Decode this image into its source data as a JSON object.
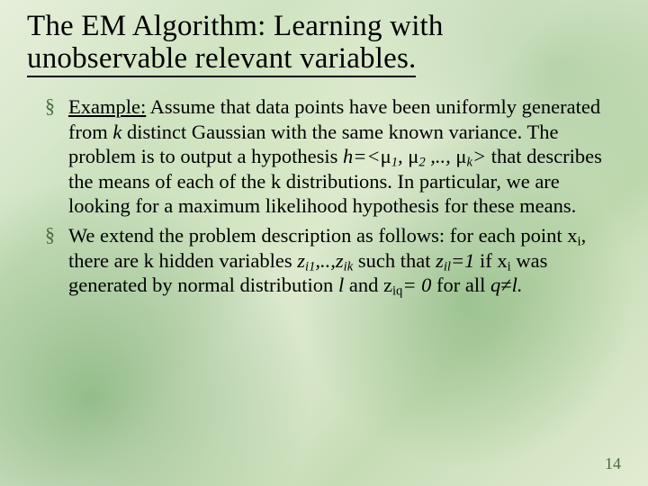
{
  "title_line1": "The EM Algorithm: Learning with",
  "title_line2": "unobservable relevant variables.",
  "bullets": {
    "b1": {
      "example_label": "Example:",
      "t1": " Assume that data points have been uniformly generated from ",
      "k": "k",
      "t2": " distinct Gaussian with the same known variance. The problem is to output a hypothesis ",
      "h_eq": "h=<",
      "mu": "μ",
      "s1": "1",
      "comma_sp": ", ",
      "s2": "2",
      "dots": " ,.., ",
      "sk": "k",
      "close": ">",
      "t3": "  that describes the means of each of the k distributions. In particular, we are looking for a maximum likelihood hypothesis for these means."
    },
    "b2": {
      "t1": "We extend the problem description as follows: for each point x",
      "xi_sub": "i",
      "t2": ", there are k hidden variables ",
      "z": "z",
      "zi1": "i1",
      "commadots": ",..,",
      "zik": "ik",
      "t3": " such that ",
      "zil": "il",
      "eq1": "=1",
      "t4": " if x",
      "t5": " was generated by normal distribution ",
      "l": "l",
      "t6": " and z",
      "ziq": "iq",
      "eq0": "= 0",
      "t7": " for all ",
      "q": "q",
      "neq": "≠",
      "ldot": "l."
    }
  },
  "page_number": "14",
  "colors": {
    "accent": "#4a6b3e",
    "text": "#000000"
  }
}
